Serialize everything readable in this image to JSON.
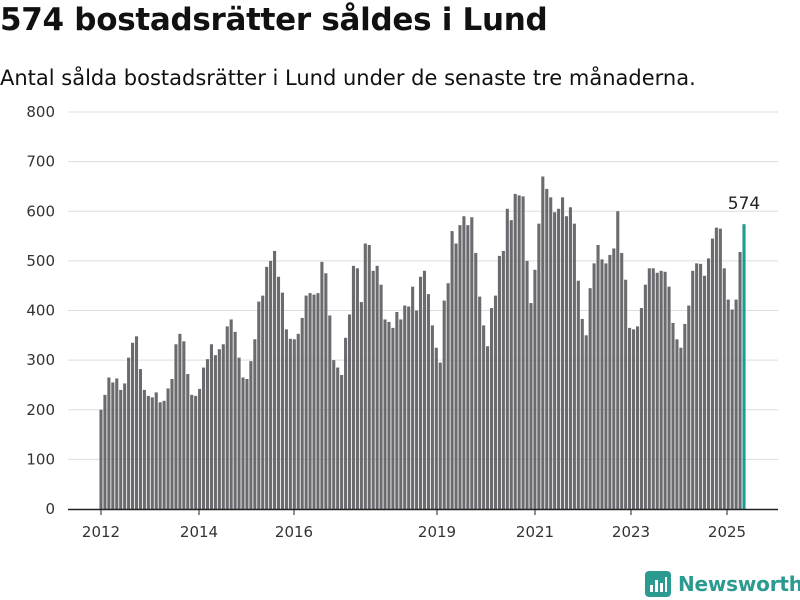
{
  "header": {
    "title": "574 bostadsrätter såldes i Lund",
    "subtitle": "Antal sålda bostadsrätter i Lund under de senaste tre månaderna."
  },
  "brand": {
    "name": "Newsworthy",
    "icon": "newsworthy-logo-icon",
    "color": "#2b9a8f"
  },
  "colors": {
    "bar": "#6b6a6f",
    "highlight": "#1f9a8f",
    "grid": "#dddddd",
    "axis": "#222222"
  },
  "chart_data": {
    "type": "bar",
    "ylim": [
      0,
      800
    ],
    "yticks": [
      0,
      100,
      200,
      300,
      400,
      500,
      600,
      700,
      800
    ],
    "xtick_labels": [
      "2012",
      "2014",
      "2016",
      "2019",
      "2021",
      "2023",
      "2025"
    ],
    "grid": true,
    "annotation": {
      "text": "574",
      "value": 574
    },
    "series": [
      {
        "values": [
          200,
          230,
          265,
          255,
          263,
          240,
          253,
          305,
          335,
          348,
          282,
          240,
          228,
          225,
          235,
          215,
          218,
          243,
          262,
          332,
          353,
          338,
          272,
          230,
          228,
          242,
          285,
          302,
          332,
          310,
          322,
          332,
          368,
          382,
          357,
          305,
          265,
          262,
          298,
          342,
          418,
          430,
          488,
          500,
          520,
          468,
          436,
          362,
          343,
          342,
          353,
          385,
          430,
          435,
          432,
          435,
          498,
          475,
          390,
          300,
          285,
          270,
          345,
          392,
          490,
          485,
          417,
          535,
          532,
          480,
          490,
          452,
          382,
          377,
          365,
          397,
          382,
          410,
          408,
          448,
          400,
          468,
          480,
          433,
          370,
          325,
          295,
          420,
          455,
          560,
          535,
          572,
          590,
          572,
          588,
          516,
          428,
          370,
          328,
          405,
          430,
          510,
          520,
          605,
          582,
          635,
          632,
          630,
          500,
          415,
          482,
          575,
          670,
          645,
          628,
          598,
          605,
          628,
          590,
          608,
          575,
          460,
          383,
          350,
          445,
          495,
          532,
          503,
          495,
          512,
          525,
          600,
          516,
          462,
          365,
          362,
          368,
          405,
          452,
          485,
          485,
          476,
          480,
          478,
          448,
          375,
          342,
          325,
          373,
          410,
          480,
          495,
          494,
          470,
          505,
          545,
          567,
          565,
          485,
          422,
          402,
          422,
          518,
          574
        ]
      }
    ]
  }
}
